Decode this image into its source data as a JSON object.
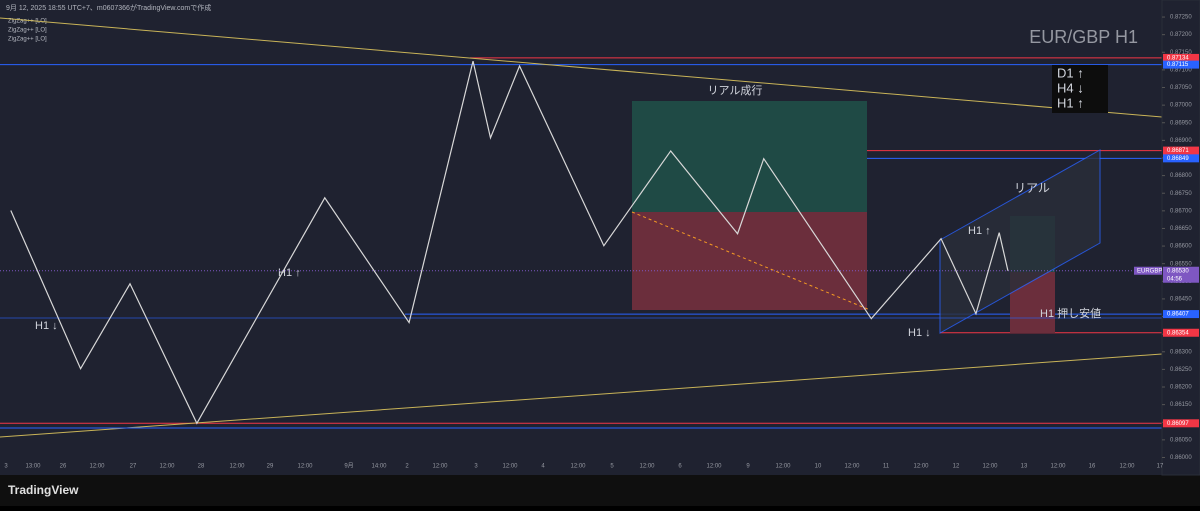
{
  "header": {
    "caption": "9月 12, 2025 18:55 UTC+7、m0607366がTradingView.comで作成",
    "indicators": [
      "ZigZag++ [LO]",
      "ZigZag++ [LO]",
      "ZigZag++ [LO]"
    ],
    "brand": "TradingView"
  },
  "chart_data": {
    "type": "line",
    "title": "EUR/GBP H1",
    "xlim": [
      -2,
      396
    ],
    "ylim": [
      0.8599,
      0.8727
    ],
    "yticks": [
      {
        "value": 0.86,
        "label": "0.86000"
      },
      {
        "value": 0.8605,
        "label": "0.86050"
      },
      {
        "value": 0.861,
        "label": "0.86100"
      },
      {
        "value": 0.8615,
        "label": "0.86150"
      },
      {
        "value": 0.862,
        "label": "0.86200"
      },
      {
        "value": 0.8625,
        "label": "0.86250"
      },
      {
        "value": 0.863,
        "label": "0.86300"
      },
      {
        "value": 0.8635,
        "label": "0.86350"
      },
      {
        "value": 0.864,
        "label": "0.86400"
      },
      {
        "value": 0.8645,
        "label": "0.86450"
      },
      {
        "value": 0.865,
        "label": "0.86500"
      },
      {
        "value": 0.8655,
        "label": "0.86550"
      },
      {
        "value": 0.866,
        "label": "0.86600"
      },
      {
        "value": 0.8665,
        "label": "0.86650"
      },
      {
        "value": 0.867,
        "label": "0.86700"
      },
      {
        "value": 0.8675,
        "label": "0.86750"
      },
      {
        "value": 0.868,
        "label": "0.86800"
      },
      {
        "value": 0.8685,
        "label": "0.86850"
      },
      {
        "value": 0.869,
        "label": "0.86900"
      },
      {
        "value": 0.8695,
        "label": "0.86950"
      },
      {
        "value": 0.87,
        "label": "0.87000"
      },
      {
        "value": 0.8705,
        "label": "0.87050"
      },
      {
        "value": 0.871,
        "label": "0.87100"
      },
      {
        "value": 0.8715,
        "label": "0.87150"
      },
      {
        "value": 0.872,
        "label": "0.87200"
      },
      {
        "value": 0.8725,
        "label": "0.87250"
      }
    ],
    "time_labels": [
      "3",
      "13:00",
      "26",
      "12:00",
      "27",
      "12:00",
      "28",
      "12:00",
      "29",
      "12:00",
      "9月",
      "14:00",
      "2",
      "12:00",
      "3",
      "12:00",
      "4",
      "12:00",
      "5",
      "12:00",
      "6",
      "12:00",
      "9",
      "12:00",
      "10",
      "12:00",
      "11",
      "12:00",
      "12",
      "12:00",
      "13",
      "12:00",
      "16",
      "12:00",
      "17"
    ],
    "series": [
      {
        "color": "#d8d8d8",
        "x": [
          0,
          24,
          41,
          64,
          108,
          137,
          159,
          165,
          175,
          204,
          227,
          250,
          259,
          296,
          320,
          332,
          340,
          343
        ],
        "values": [
          0.86701,
          0.86252,
          0.86493,
          0.86097,
          0.86737,
          0.86383,
          0.87125,
          0.86907,
          0.87111,
          0.86601,
          0.8687,
          0.86635,
          0.86848,
          0.86394,
          0.86621,
          0.86408,
          0.86638,
          0.8653
        ]
      }
    ],
    "price_tags": [
      {
        "value": 0.87134,
        "label": "0.87134",
        "color": "#f23645"
      },
      {
        "value": 0.87115,
        "label": "0.87115",
        "color": "#2962ff"
      },
      {
        "value": 0.86871,
        "label": "0.86871",
        "color": "#f23645"
      },
      {
        "value": 0.86849,
        "label": "0.86849",
        "color": "#2962ff"
      },
      {
        "value": 0.86407,
        "label": "0.86407",
        "color": "#2962ff"
      },
      {
        "value": 0.86354,
        "label": "0.86354",
        "color": "#f23645"
      },
      {
        "value": 0.86097,
        "label": "0.86097",
        "color": "#f23645"
      }
    ],
    "last_price": {
      "symbol": "EURGBP",
      "value": 0.8653,
      "label": "0.86530",
      "countdown": "04:56",
      "color": "#7e57c2"
    },
    "trend_box": [
      "D1 ↑",
      "H4 ↓",
      "H1 ↑"
    ],
    "annotations": [
      "リアル成行",
      "リアル",
      "H1 ↑",
      "H1 ↓",
      "H1 ↑",
      "H1 ↓",
      "H1 押し安値"
    ]
  }
}
